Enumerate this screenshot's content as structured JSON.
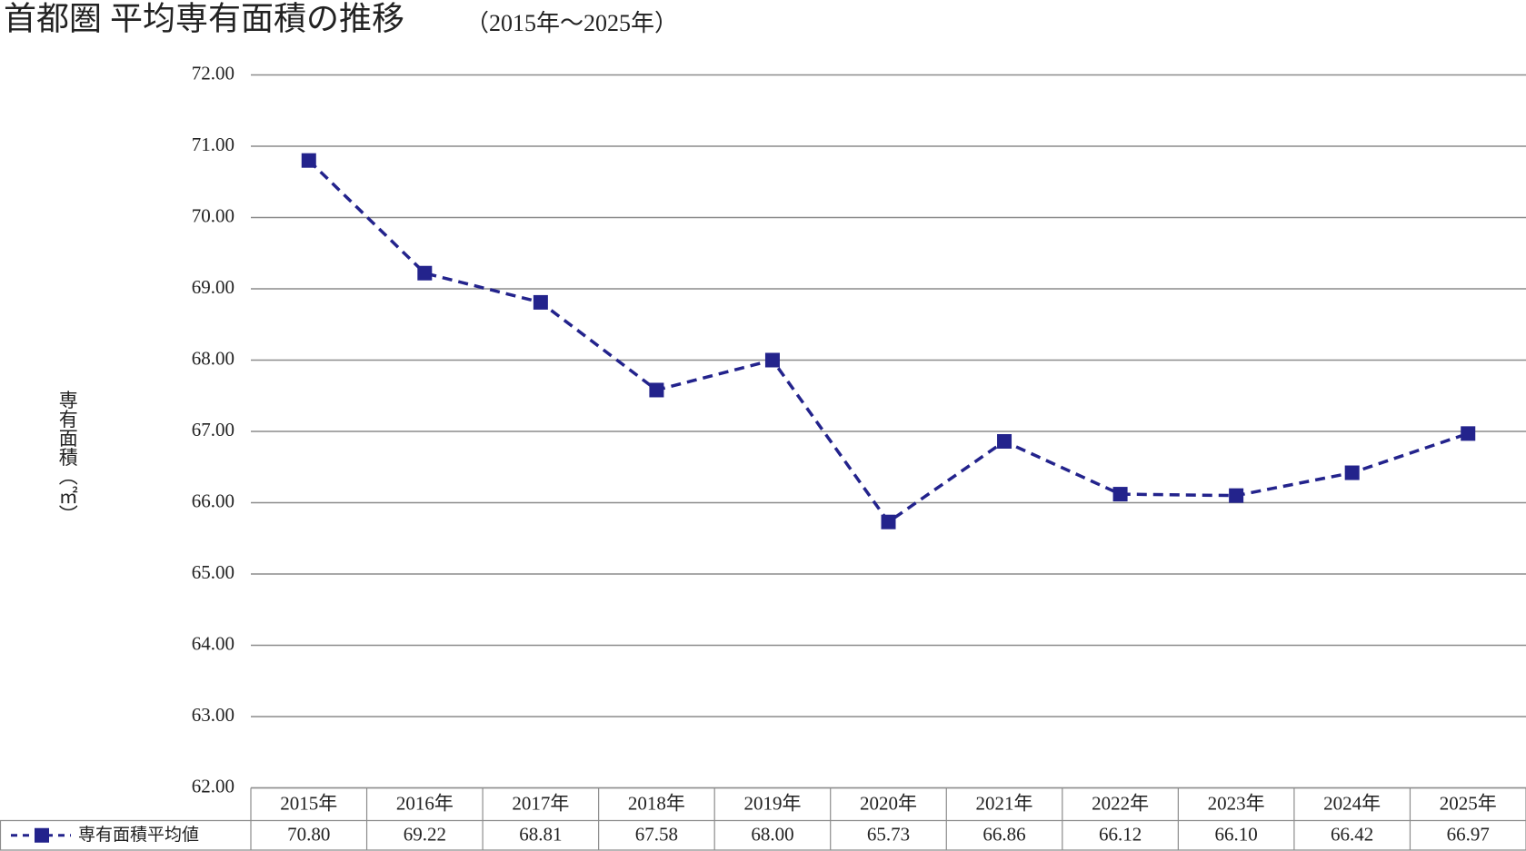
{
  "chart_data": {
    "type": "line",
    "title": "首都圏 平均専有面積の推移",
    "subtitle": "（2015年～2025年）",
    "y_label": "専有面積（㎡）",
    "categories": [
      "2015年",
      "2016年",
      "2017年",
      "2018年",
      "2019年",
      "2020年",
      "2021年",
      "2022年",
      "2023年",
      "2024年",
      "2025年"
    ],
    "series": [
      {
        "name": "専有面積平均値",
        "color": "#23238c",
        "values": [
          70.8,
          69.22,
          68.81,
          67.58,
          68.0,
          65.73,
          66.86,
          66.12,
          66.1,
          66.42,
          66.97
        ],
        "value_labels": [
          "70.80",
          "69.22",
          "68.81",
          "67.58",
          "68.00",
          "65.73",
          "66.86",
          "66.12",
          "66.10",
          "66.42",
          "66.97"
        ]
      }
    ],
    "ylim": [
      62,
      72
    ],
    "yticks": [
      {
        "value": 62,
        "label": "62.00"
      },
      {
        "value": 63,
        "label": "63.00"
      },
      {
        "value": 64,
        "label": "64.00"
      },
      {
        "value": 65,
        "label": "65.00"
      },
      {
        "value": 66,
        "label": "66.00"
      },
      {
        "value": 67,
        "label": "67.00"
      },
      {
        "value": 68,
        "label": "68.00"
      },
      {
        "value": 69,
        "label": "69.00"
      },
      {
        "value": 70,
        "label": "70.00"
      },
      {
        "value": 71,
        "label": "71.00"
      },
      {
        "value": 72,
        "label": "72.00"
      }
    ],
    "grid": true
  }
}
